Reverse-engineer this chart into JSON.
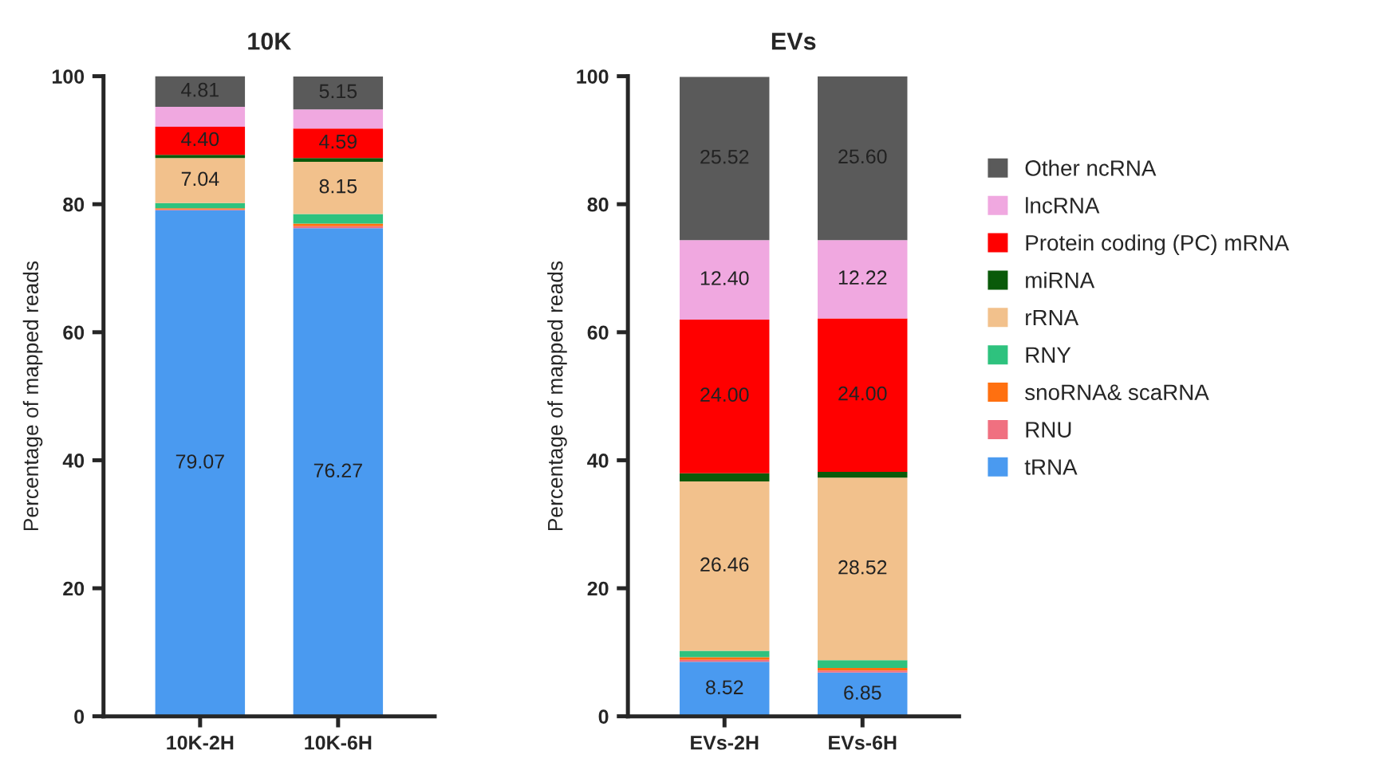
{
  "chart_data": [
    {
      "type": "bar",
      "title": "10K",
      "ylabel": "Percentage of mapped reads",
      "categories": [
        "10K-2H",
        "10K-6H"
      ],
      "stacked": true,
      "ylim": [
        0,
        100
      ],
      "yticks": [
        0,
        20,
        40,
        60,
        80,
        100
      ],
      "grid": false,
      "series": [
        {
          "color": "#4a9af0",
          "values": [
            79.07,
            76.27
          ],
          "value_labels": [
            "79.07",
            "76.27"
          ]
        },
        {
          "color": "#f07080",
          "values": [
            0.1,
            0.3
          ],
          "value_labels": [
            null,
            null
          ]
        },
        {
          "color": "#ff7010",
          "values": [
            0.2,
            0.4
          ],
          "value_labels": [
            null,
            null
          ]
        },
        {
          "color": "#2ec27e",
          "values": [
            0.8,
            1.5
          ],
          "value_labels": [
            null,
            null
          ]
        },
        {
          "color": "#f2c18c",
          "values": [
            7.04,
            8.15
          ],
          "value_labels": [
            "7.04",
            "8.15"
          ]
        },
        {
          "color": "#0a5a0a",
          "values": [
            0.5,
            0.6
          ],
          "value_labels": [
            null,
            null
          ]
        },
        {
          "color": "#ff0000",
          "values": [
            4.4,
            4.59
          ],
          "value_labels": [
            "4.40",
            "4.59"
          ]
        },
        {
          "color": "#f0a8e0",
          "values": [
            3.1,
            3.0
          ],
          "value_labels": [
            null,
            null
          ]
        },
        {
          "color": "#5a5a5a",
          "values": [
            4.81,
            5.15
          ],
          "value_labels": [
            "4.81",
            "5.15"
          ]
        }
      ]
    },
    {
      "type": "bar",
      "title": "EVs",
      "ylabel": "Percentage of mapped reads",
      "categories": [
        "EVs-2H",
        "EVs-6H"
      ],
      "stacked": true,
      "ylim": [
        0,
        100
      ],
      "yticks": [
        0,
        20,
        40,
        60,
        80,
        100
      ],
      "grid": false,
      "legend": "right",
      "series": [
        {
          "name": "tRNA",
          "color": "#4a9af0",
          "values": [
            8.52,
            6.85
          ],
          "value_labels": [
            "8.52",
            "6.85"
          ]
        },
        {
          "name": "RNU",
          "color": "#f07080",
          "values": [
            0.3,
            0.3
          ],
          "value_labels": [
            null,
            null
          ]
        },
        {
          "name": "snoRNA& scaRNA",
          "color": "#ff7010",
          "values": [
            0.4,
            0.4
          ],
          "value_labels": [
            null,
            null
          ]
        },
        {
          "name": "RNY",
          "color": "#2ec27e",
          "values": [
            1.0,
            1.2
          ],
          "value_labels": [
            null,
            null
          ]
        },
        {
          "name": "rRNA",
          "color": "#f2c18c",
          "values": [
            26.46,
            28.52
          ],
          "value_labels": [
            "26.46",
            "28.52"
          ]
        },
        {
          "name": "miRNA",
          "color": "#0a5a0a",
          "values": [
            1.3,
            0.9
          ],
          "value_labels": [
            null,
            null
          ]
        },
        {
          "name": "Protein coding (PC) mRNA",
          "color": "#ff0000",
          "values": [
            24.0,
            24.0
          ],
          "value_labels": [
            "24.00",
            "24.00"
          ]
        },
        {
          "name": "lncRNA",
          "color": "#f0a8e0",
          "values": [
            12.4,
            12.22
          ],
          "value_labels": [
            "12.40",
            "12.22"
          ]
        },
        {
          "name": "Other ncRNA",
          "color": "#5a5a5a",
          "values": [
            25.52,
            25.6
          ],
          "value_labels": [
            "25.52",
            "25.60"
          ]
        }
      ]
    }
  ]
}
